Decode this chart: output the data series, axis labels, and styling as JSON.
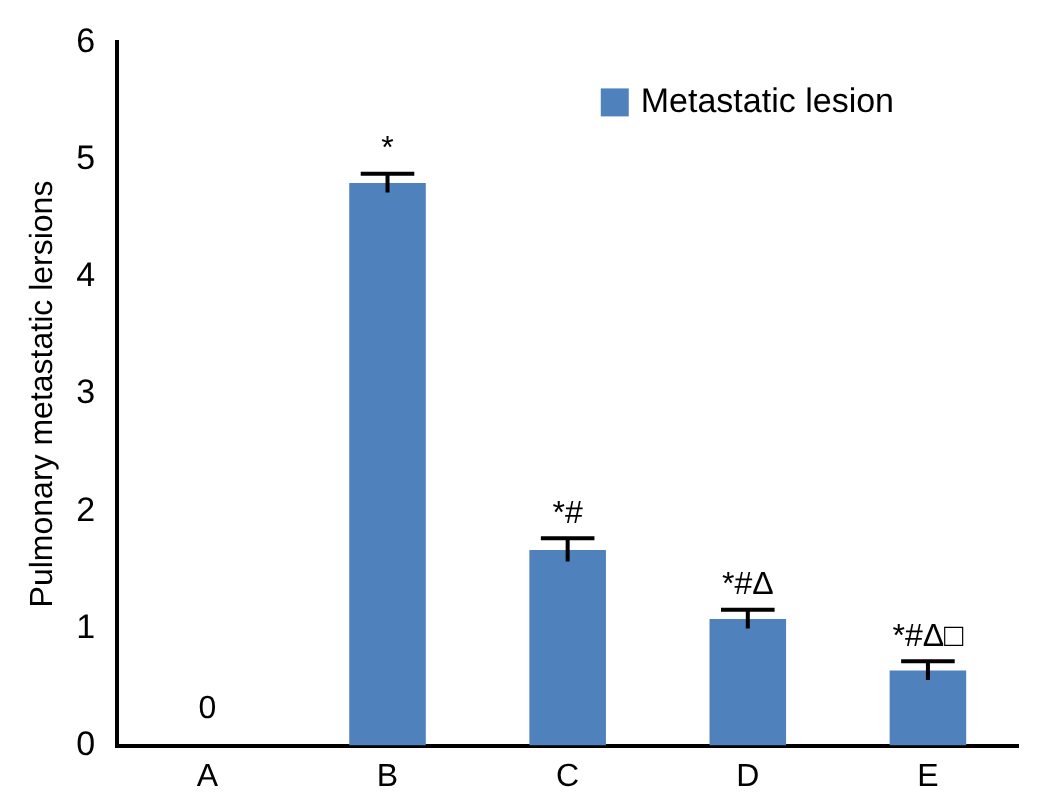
{
  "chart_data": {
    "type": "bar",
    "ylabel": "Pulmonary metastatic lersions",
    "categories": [
      "A",
      "B",
      "C",
      "D",
      "E"
    ],
    "series": [
      {
        "name": "Metastatic lesion",
        "color": "#4f81bd",
        "values": [
          0,
          4.8,
          1.67,
          1.08,
          0.64
        ],
        "errors": [
          null,
          0.08,
          0.1,
          0.08,
          0.08
        ],
        "value_labels": [
          "0",
          null,
          null,
          null,
          null
        ]
      }
    ],
    "ylim": [
      0,
      6
    ],
    "yticks": [
      0,
      1,
      2,
      3,
      4,
      5,
      6
    ],
    "grid": false,
    "legend": "top right",
    "annotations": [
      {
        "text": "*",
        "x": "B",
        "y": 4.88
      },
      {
        "text": "*#",
        "x": "C",
        "y": 1.77
      },
      {
        "text": "*#Δ",
        "x": "D",
        "y": 1.16
      },
      {
        "text": "*#Δ□",
        "x": "E",
        "y": 0.72
      }
    ]
  }
}
